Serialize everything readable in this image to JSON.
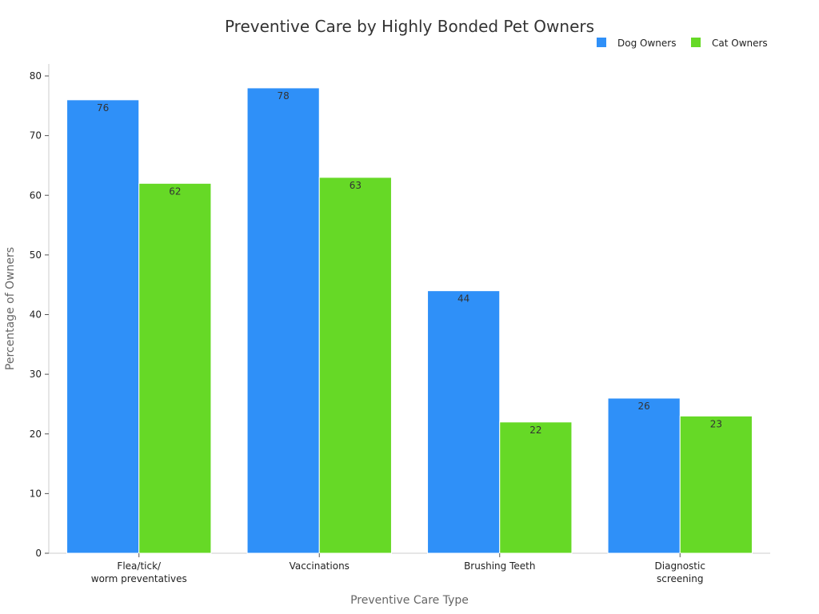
{
  "chart_data": {
    "type": "bar",
    "title": "Preventive Care by Highly Bonded Pet Owners",
    "xlabel": "Preventive Care Type",
    "ylabel": "Percentage of Owners",
    "categories": [
      [
        "Flea/tick/",
        "worm preventatives"
      ],
      [
        "Vaccinations"
      ],
      [
        "Brushing Teeth"
      ],
      [
        "Diagnostic",
        "screening"
      ]
    ],
    "series": [
      {
        "name": "Dog Owners",
        "color": "#2f90f8",
        "values": [
          76,
          78,
          44,
          26
        ]
      },
      {
        "name": "Cat Owners",
        "color": "#66d926",
        "values": [
          62,
          63,
          22,
          23
        ]
      }
    ],
    "ylim": [
      0,
      80
    ],
    "yticks": [
      0,
      10,
      20,
      30,
      40,
      50,
      60,
      70,
      80
    ],
    "grid": false,
    "legend_position": "top-right",
    "data_labels": true
  }
}
